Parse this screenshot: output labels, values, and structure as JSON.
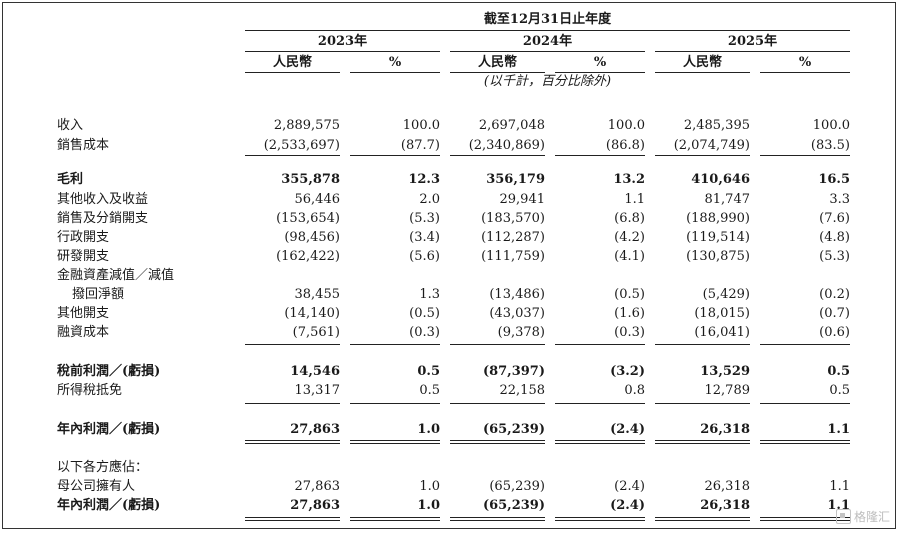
{
  "header": {
    "period_title": "截至12月31日止年度",
    "years": [
      "2023年",
      "2024年",
      "2025年"
    ],
    "currency_label": "人民幣",
    "percent_label": "%",
    "unit_note": "(以千計，百分比除外)"
  },
  "rows": [
    {
      "label": "收入",
      "bold": false,
      "v": [
        "2,889,575",
        "100.0",
        "2,697,048",
        "100.0",
        "2,485,395",
        "100.0"
      ]
    },
    {
      "label": "銷售成本",
      "bold": false,
      "v": [
        "(2,533,697)",
        "(87.7)",
        "(2,340,869)",
        "(86.8)",
        "(2,074,749)",
        "(83.5)"
      ]
    },
    {
      "label": "毛利",
      "bold": true,
      "v": [
        "355,878",
        "12.3",
        "356,179",
        "13.2",
        "410,646",
        "16.5"
      ]
    },
    {
      "label": "其他收入及收益",
      "bold": false,
      "v": [
        "56,446",
        "2.0",
        "29,941",
        "1.1",
        "81,747",
        "3.3"
      ]
    },
    {
      "label": "銷售及分銷開支",
      "bold": false,
      "v": [
        "(153,654)",
        "(5.3)",
        "(183,570)",
        "(6.8)",
        "(188,990)",
        "(7.6)"
      ]
    },
    {
      "label": "行政開支",
      "bold": false,
      "v": [
        "(98,456)",
        "(3.4)",
        "(112,287)",
        "(4.2)",
        "(119,514)",
        "(4.8)"
      ]
    },
    {
      "label": "研發開支",
      "bold": false,
      "v": [
        "(162,422)",
        "(5.6)",
        "(111,759)",
        "(4.1)",
        "(130,875)",
        "(5.3)"
      ]
    },
    {
      "label": "金融資產減值／減值",
      "bold": false,
      "v": [
        "",
        "",
        "",
        "",
        "",
        ""
      ]
    },
    {
      "label": "撥回淨額",
      "bold": false,
      "indent": true,
      "v": [
        "38,455",
        "1.3",
        "(13,486)",
        "(0.5)",
        "(5,429)",
        "(0.2)"
      ]
    },
    {
      "label": "其他開支",
      "bold": false,
      "v": [
        "(14,140)",
        "(0.5)",
        "(43,037)",
        "(1.6)",
        "(18,015)",
        "(0.7)"
      ]
    },
    {
      "label": "融資成本",
      "bold": false,
      "v": [
        "(7,561)",
        "(0.3)",
        "(9,378)",
        "(0.3)",
        "(16,041)",
        "(0.6)"
      ]
    },
    {
      "label": "稅前利潤／(虧損)",
      "bold": true,
      "v": [
        "14,546",
        "0.5",
        "(87,397)",
        "(3.2)",
        "13,529",
        "0.5"
      ]
    },
    {
      "label": "所得稅抵免",
      "bold": false,
      "v": [
        "13,317",
        "0.5",
        "22,158",
        "0.8",
        "12,789",
        "0.5"
      ]
    },
    {
      "label": "年內利潤／(虧損)",
      "bold": true,
      "v": [
        "27,863",
        "1.0",
        "(65,239)",
        "(2.4)",
        "26,318",
        "1.1"
      ]
    },
    {
      "label": "以下各方應佔：",
      "bold": false,
      "v": [
        "",
        "",
        "",
        "",
        "",
        ""
      ]
    },
    {
      "label": "母公司擁有人",
      "bold": false,
      "v": [
        "27,863",
        "1.0",
        "(65,239)",
        "(2.4)",
        "26,318",
        "1.1"
      ]
    },
    {
      "label": "年內利潤／(虧損)",
      "bold": true,
      "v": [
        "27,863",
        "1.0",
        "(65,239)",
        "(2.4)",
        "26,318",
        "1.1"
      ]
    }
  ],
  "watermark": "格隆汇"
}
